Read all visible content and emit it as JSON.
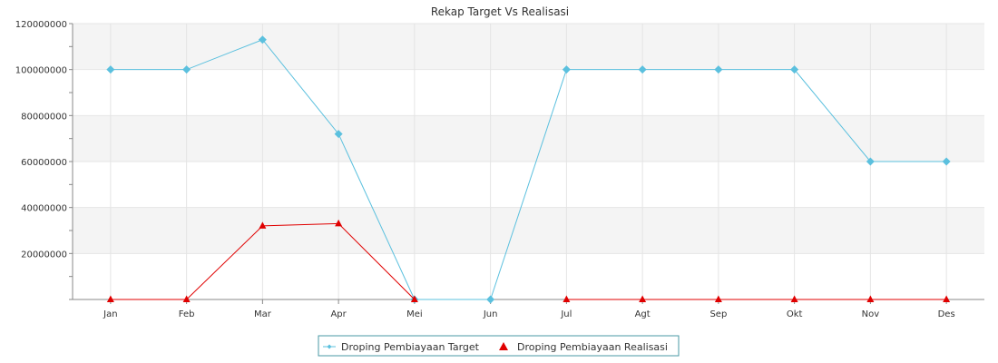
{
  "chart_data": {
    "type": "line",
    "title": "Rekap Target Vs Realisasi",
    "categories": [
      "Jan",
      "Feb",
      "Mar",
      "Apr",
      "Mei",
      "Jun",
      "Jul",
      "Agt",
      "Sep",
      "Okt",
      "Nov",
      "Des"
    ],
    "y_ticks": [
      "20000000",
      "40000000",
      "60000000",
      "80000000",
      "100000000",
      "120000000"
    ],
    "ylim": [
      0,
      120000000
    ],
    "grid": true,
    "legend_position": "bottom-center",
    "series": [
      {
        "name": "Droping Pembiayaan Target",
        "marker": "diamond",
        "color": "#5bc0de",
        "values": [
          100000000,
          100000000,
          113000000,
          72000000,
          0,
          0,
          100000000,
          100000000,
          100000000,
          100000000,
          60000000,
          60000000
        ]
      },
      {
        "name": "Droping Pembiayaan Realisasi",
        "marker": "triangle",
        "color": "#e00000",
        "values": [
          0,
          0,
          32000000,
          33000000,
          0,
          null,
          0,
          0,
          0,
          0,
          0,
          0
        ]
      }
    ]
  }
}
